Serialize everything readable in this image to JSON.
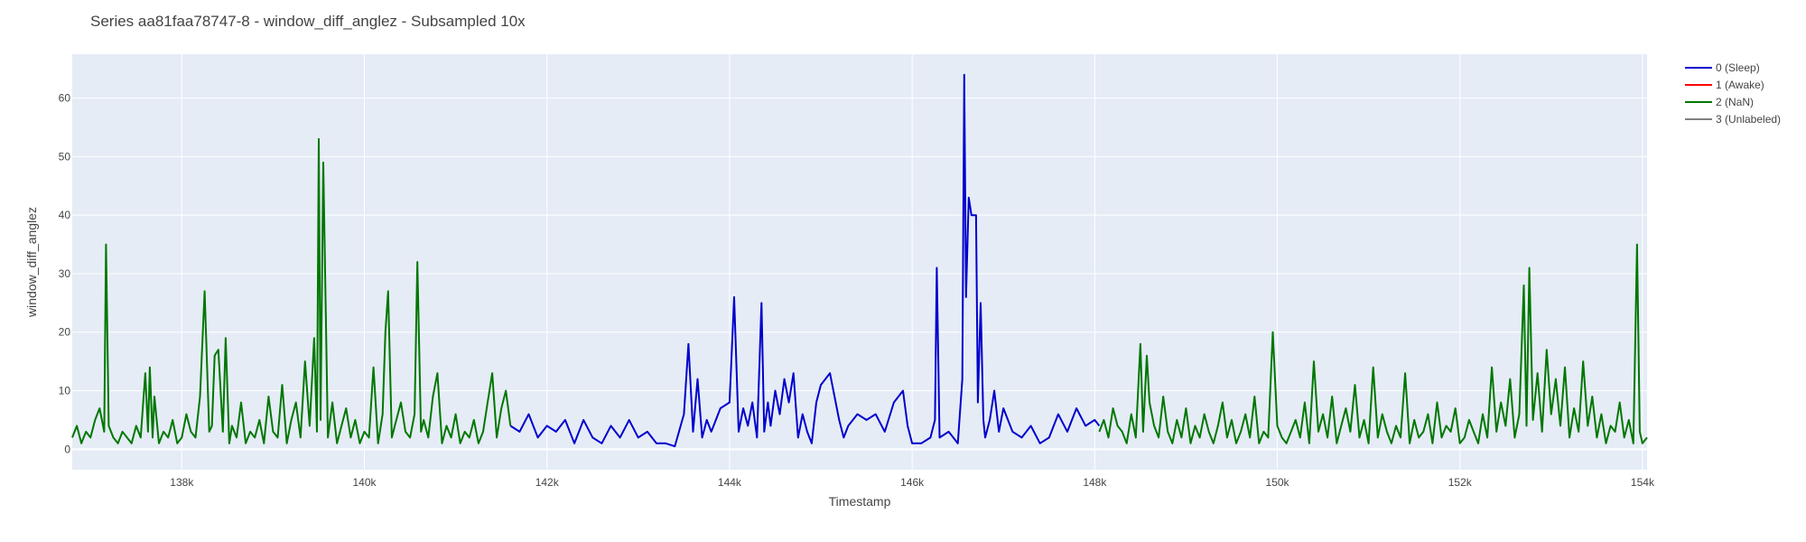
{
  "chart_data": {
    "type": "line",
    "title": "Series aa81faa78747-8 - window_diff_anglez - Subsampled 10x",
    "xlabel": "Timestamp",
    "ylabel": "window_diff_anglez",
    "xlim": [
      136800,
      154050
    ],
    "ylim": [
      -3.5,
      67.5
    ],
    "x_ticks": [
      {
        "value": 138000,
        "label": "138k"
      },
      {
        "value": 140000,
        "label": "140k"
      },
      {
        "value": 142000,
        "label": "142k"
      },
      {
        "value": 144000,
        "label": "144k"
      },
      {
        "value": 146000,
        "label": "146k"
      },
      {
        "value": 148000,
        "label": "148k"
      },
      {
        "value": 150000,
        "label": "150k"
      },
      {
        "value": 152000,
        "label": "152k"
      },
      {
        "value": 154000,
        "label": "154k"
      }
    ],
    "y_ticks": [
      {
        "value": 0,
        "label": "0"
      },
      {
        "value": 10,
        "label": "10"
      },
      {
        "value": 20,
        "label": "20"
      },
      {
        "value": 30,
        "label": "30"
      },
      {
        "value": 40,
        "label": "40"
      },
      {
        "value": 50,
        "label": "50"
      },
      {
        "value": 60,
        "label": "60"
      }
    ],
    "grid": true,
    "legend_position": "top-right",
    "colors": {
      "plot_bg": "#e5ecf6",
      "grid": "#ffffff",
      "sleep": "#0000cc",
      "awake": "#ff0000",
      "nan": "#007700",
      "unlabeled": "#808080"
    },
    "legend": [
      {
        "name": "0 (Sleep)",
        "color": "#0000cc"
      },
      {
        "name": "1 (Awake)",
        "color": "#ff0000"
      },
      {
        "name": "2 (NaN)",
        "color": "#007700"
      },
      {
        "name": "3 (Unlabeled)",
        "color": "#808080"
      }
    ],
    "series": [
      {
        "name": "2 (NaN)",
        "color": "#007700",
        "x": [
          136800,
          136850,
          136900,
          136950,
          137000,
          137050,
          137100,
          137150,
          137170,
          137200,
          137250,
          137300,
          137350,
          137400,
          137450,
          137500,
          137550,
          137600,
          137630,
          137650,
          137680,
          137700,
          137750,
          137800,
          137850,
          137900,
          137950,
          138000,
          138050,
          138100,
          138150,
          138200,
          138250,
          138300,
          138330,
          138360,
          138400,
          138450,
          138480,
          138520,
          138550,
          138600,
          138650,
          138700,
          138750,
          138800,
          138850,
          138900,
          138950,
          139000,
          139050,
          139100,
          139150,
          139200,
          139250,
          139300,
          139350,
          139400,
          139450,
          139480,
          139500,
          139520,
          139550,
          139600,
          139650,
          139700,
          139750,
          139800,
          139850,
          139900,
          139950,
          140000,
          140050,
          140100,
          140150,
          140200,
          140230,
          140260,
          140300,
          140350,
          140400,
          140450,
          140500,
          140550,
          140580,
          140620,
          140650,
          140700,
          140750,
          140800,
          140850,
          140900,
          140950,
          141000,
          141050,
          141100,
          141150,
          141200,
          141250,
          141300,
          141350,
          141400,
          141450,
          141500,
          141550,
          141600
        ],
        "y": [
          2,
          4,
          1,
          3,
          2,
          5,
          7,
          3,
          35,
          4,
          2,
          1,
          3,
          2,
          1,
          4,
          2,
          13,
          3,
          14,
          2,
          9,
          1,
          3,
          2,
          5,
          1,
          2,
          6,
          3,
          2,
          9,
          27,
          3,
          4,
          16,
          17,
          3,
          19,
          1,
          4,
          2,
          8,
          1,
          3,
          2,
          5,
          1,
          9,
          3,
          2,
          11,
          1,
          5,
          8,
          2,
          15,
          4,
          19,
          3,
          53,
          5,
          49,
          2,
          8,
          1,
          4,
          7,
          2,
          5,
          1,
          3,
          2,
          14,
          1,
          6,
          20,
          27,
          2,
          5,
          8,
          3,
          2,
          6,
          32,
          3,
          5,
          2,
          9,
          13,
          1,
          4,
          2,
          6,
          1,
          3,
          2,
          5,
          1,
          3,
          8,
          13,
          2,
          7,
          10,
          4
        ]
      },
      {
        "name": "0 (Sleep)",
        "color": "#0000cc",
        "x": [
          141600,
          141700,
          141800,
          141900,
          142000,
          142100,
          142200,
          142300,
          142400,
          142500,
          142600,
          142700,
          142800,
          142900,
          143000,
          143100,
          143200,
          143300,
          143400,
          143500,
          143550,
          143600,
          143650,
          143700,
          143750,
          143800,
          143900,
          144000,
          144050,
          144100,
          144150,
          144200,
          144250,
          144300,
          144350,
          144380,
          144420,
          144450,
          144500,
          144550,
          144600,
          144650,
          144700,
          144750,
          144800,
          144850,
          144900,
          144950,
          145000,
          145100,
          145200,
          145250,
          145300,
          145400,
          145500,
          145600,
          145700,
          145800,
          145900,
          145950,
          146000,
          146100,
          146200,
          146250,
          146270,
          146300,
          146400,
          146500,
          146550,
          146570,
          146590,
          146620,
          146650,
          146700,
          146720,
          146750,
          146780,
          146800,
          146850,
          146900,
          146950,
          147000,
          147100,
          147200,
          147300,
          147400,
          147500,
          147600,
          147700,
          147800,
          147900,
          148000,
          148050
        ],
        "y": [
          4,
          3,
          6,
          2,
          4,
          3,
          5,
          1,
          5,
          2,
          1,
          4,
          2,
          5,
          2,
          3,
          1,
          1,
          0.5,
          6,
          18,
          3,
          12,
          2,
          5,
          3,
          7,
          8,
          26,
          3,
          7,
          4,
          8,
          2,
          25,
          3,
          8,
          4,
          10,
          6,
          12,
          8,
          13,
          2,
          6,
          3,
          1,
          8,
          11,
          13,
          5,
          2,
          4,
          6,
          5,
          6,
          3,
          8,
          10,
          4,
          1,
          1,
          2,
          5,
          31,
          2,
          3,
          1,
          12,
          64,
          26,
          43,
          40,
          40,
          8,
          25,
          5,
          2,
          5,
          10,
          3,
          7,
          3,
          2,
          4,
          1,
          2,
          6,
          3,
          7,
          4,
          5,
          4
        ]
      },
      {
        "name": "2 (NaN)",
        "color": "#007700",
        "x": [
          148050,
          148100,
          148150,
          148200,
          148250,
          148300,
          148350,
          148400,
          148450,
          148500,
          148530,
          148570,
          148600,
          148650,
          148700,
          148750,
          148800,
          148850,
          148900,
          148950,
          149000,
          149050,
          149100,
          149150,
          149200,
          149250,
          149300,
          149350,
          149400,
          149450,
          149500,
          149550,
          149600,
          149650,
          149700,
          149750,
          149800,
          149850,
          149900,
          149950,
          150000,
          150050,
          150100,
          150150,
          150200,
          150250,
          150300,
          150350,
          150400,
          150450,
          150500,
          150550,
          150600,
          150650,
          150700,
          150750,
          150800,
          150850,
          150900,
          150950,
          151000,
          151050,
          151100,
          151150,
          151200,
          151250,
          151300,
          151350,
          151400,
          151450,
          151500,
          151550,
          151600,
          151650,
          151700,
          151750,
          151800,
          151850,
          151900,
          151950,
          152000,
          152050,
          152100,
          152150,
          152200,
          152250,
          152300,
          152350,
          152400,
          152450,
          152500,
          152550,
          152600,
          152650,
          152700,
          152730,
          152760,
          152800,
          152850,
          152900,
          152950,
          153000,
          153050,
          153100,
          153150,
          153200,
          153250,
          153300,
          153350,
          153400,
          153450,
          153500,
          153550,
          153600,
          153650,
          153700,
          153750,
          153800,
          153850,
          153900,
          153940,
          153970,
          154000,
          154050
        ],
        "y": [
          3,
          5,
          2,
          7,
          4,
          3,
          1,
          6,
          2,
          18,
          3,
          16,
          8,
          4,
          2,
          9,
          3,
          1,
          5,
          2,
          7,
          1,
          4,
          2,
          6,
          3,
          1,
          4,
          8,
          2,
          5,
          1,
          3,
          6,
          2,
          9,
          1,
          3,
          2,
          20,
          4,
          2,
          1,
          3,
          5,
          2,
          8,
          1,
          15,
          3,
          6,
          2,
          9,
          1,
          4,
          7,
          3,
          11,
          2,
          5,
          1,
          14,
          2,
          6,
          3,
          1,
          4,
          2,
          13,
          1,
          5,
          2,
          3,
          6,
          1,
          8,
          2,
          4,
          3,
          7,
          1,
          2,
          5,
          3,
          1,
          6,
          2,
          14,
          3,
          8,
          4,
          12,
          2,
          6,
          28,
          4,
          31,
          5,
          13,
          3,
          17,
          6,
          12,
          4,
          14,
          2,
          7,
          3,
          15,
          4,
          9,
          2,
          6,
          1,
          4,
          3,
          8,
          2,
          5,
          1,
          35,
          3,
          1,
          2
        ]
      }
    ]
  }
}
